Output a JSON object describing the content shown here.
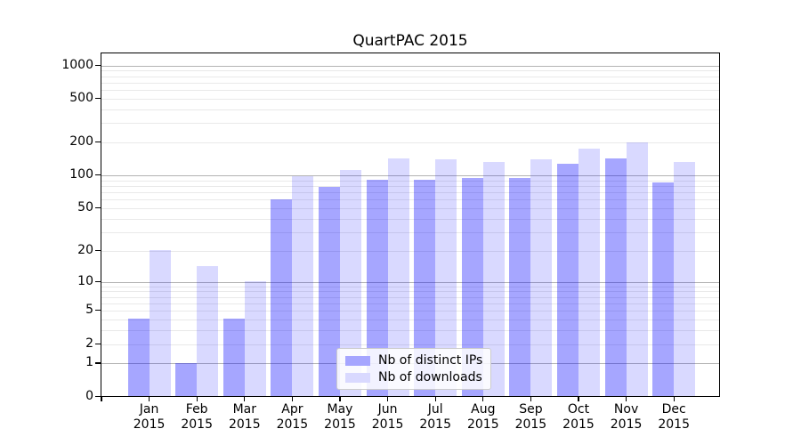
{
  "chart_data": {
    "type": "bar",
    "title": "QuartPAC 2015",
    "categories": [
      "Jan",
      "Feb",
      "Mar",
      "Apr",
      "May",
      "Jun",
      "Jul",
      "Aug",
      "Sep",
      "Oct",
      "Nov",
      "Dec"
    ],
    "x_axis": {
      "year_label": "2015",
      "tick_labels": [
        "Jan 2015",
        "Feb 2015",
        "Mar 2015",
        "Apr 2015",
        "May 2015",
        "Jun 2015",
        "Jul 2015",
        "Aug 2015",
        "Sep 2015",
        "Oct 2015",
        "Nov 2015",
        "Dec 2015"
      ]
    },
    "series": [
      {
        "name": "Nb of distinct IPs",
        "values": [
          4,
          1,
          4,
          60,
          78,
          90,
          91,
          93,
          93,
          127,
          141,
          85
        ],
        "fill": "rgba(0,0,255,0.35)",
        "color_hex": "#a6a6ff"
      },
      {
        "name": "Nb of downloads",
        "values": [
          20,
          14,
          10,
          97,
          110,
          142,
          139,
          132,
          138,
          173,
          197,
          130
        ],
        "fill": "rgba(0,0,255,0.15)",
        "color_hex": "#d9d9ff"
      }
    ],
    "y_axis": {
      "scale": "log10(1+v)",
      "tick_labels": [
        0,
        1,
        2,
        5,
        10,
        20,
        50,
        100,
        200,
        500,
        1000
      ],
      "major_gridlines": [
        1,
        10,
        100,
        1000
      ],
      "minor_gridlines": [
        2,
        3,
        4,
        5,
        6,
        7,
        8,
        9,
        20,
        30,
        40,
        50,
        60,
        70,
        80,
        90,
        200,
        300,
        400,
        500,
        600,
        700,
        800,
        900
      ],
      "ylim_top": 1250
    },
    "legend": {
      "position": "lower center",
      "entries": [
        "Nb of distinct IPs",
        "Nb of downloads"
      ]
    },
    "grid": true
  },
  "colors": {
    "bar_distinct_ips": "#a6a6ff",
    "bar_downloads": "#d9d9ff",
    "bar_base": "#0000ff",
    "grid_major": "#b3b3b3",
    "grid_minor": "#e9e9e9",
    "axis": "#000000",
    "background": "#ffffff"
  }
}
